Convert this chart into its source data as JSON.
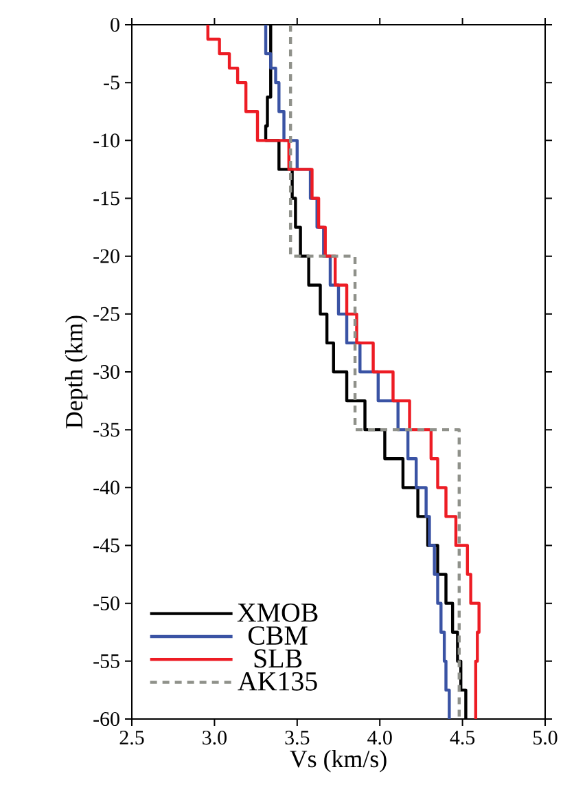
{
  "chart_data": {
    "type": "line",
    "xlabel": "Vs (km/s)",
    "ylabel": "Depth (km)",
    "xlim": [
      2.5,
      5.0
    ],
    "ylim": [
      -60,
      0
    ],
    "xticks": [
      2.5,
      {
        "value": 3.0,
        "label": "3.0"
      },
      3.5,
      {
        "value": 4.0,
        "label": "4.0"
      },
      4.5,
      {
        "value": 5.0,
        "label": "5.0"
      }
    ],
    "yticks": [
      -60,
      -55,
      -50,
      -45,
      -40,
      -35,
      -30,
      -25,
      -20,
      -15,
      -10,
      -5,
      0
    ],
    "legend": "bottom left",
    "series": [
      {
        "name": "XMOB",
        "color": "#000000",
        "line_style": "solid",
        "x": [
          3.34,
          3.34,
          3.32,
          3.32,
          3.31,
          3.31,
          3.39,
          3.39,
          3.47,
          3.47,
          3.49,
          3.49,
          3.52,
          3.52,
          3.57,
          3.57,
          3.64,
          3.64,
          3.68,
          3.68,
          3.72,
          3.72,
          3.8,
          3.8,
          3.91,
          3.91,
          4.03,
          4.03,
          4.14,
          4.14,
          4.23,
          4.23,
          4.29,
          4.29,
          4.35,
          4.35,
          4.4,
          4.4,
          4.44,
          4.44,
          4.47,
          4.47,
          4.49,
          4.49,
          4.52,
          4.52
        ],
        "values": [
          0,
          -6.25,
          -6.25,
          -8.75,
          -8.75,
          -10,
          -10,
          -12.5,
          -12.5,
          -15,
          -15,
          -17.5,
          -17.5,
          -20,
          -20,
          -22.5,
          -22.5,
          -25,
          -25,
          -27.5,
          -27.5,
          -30,
          -30,
          -32.5,
          -32.5,
          -35,
          -35,
          -37.5,
          -37.5,
          -40,
          -40,
          -42.5,
          -42.5,
          -45,
          -45,
          -47.5,
          -47.5,
          -50,
          -50,
          -52.5,
          -52.5,
          -55,
          -55,
          -57.5,
          -57.5,
          -60
        ]
      },
      {
        "name": "CBM",
        "color": "#3a53a4",
        "line_style": "solid",
        "x": [
          3.31,
          3.31,
          3.34,
          3.34,
          3.37,
          3.37,
          3.39,
          3.39,
          3.42,
          3.42,
          3.5,
          3.5,
          3.58,
          3.58,
          3.62,
          3.62,
          3.66,
          3.66,
          3.7,
          3.7,
          3.75,
          3.75,
          3.8,
          3.8,
          3.88,
          3.88,
          3.99,
          3.99,
          4.11,
          4.11,
          4.17,
          4.17,
          4.22,
          4.22,
          4.28,
          4.28,
          4.3,
          4.3,
          4.33,
          4.33,
          4.35,
          4.35,
          4.37,
          4.37,
          4.39,
          4.39,
          4.4,
          4.4,
          4.42,
          4.42
        ],
        "values": [
          0,
          -2.5,
          -2.5,
          -3.75,
          -3.75,
          -5,
          -5,
          -7.5,
          -7.5,
          -10,
          -10,
          -12.5,
          -12.5,
          -15,
          -15,
          -17.5,
          -17.5,
          -20,
          -20,
          -22.5,
          -22.5,
          -25,
          -25,
          -27.5,
          -27.5,
          -30,
          -30,
          -32.5,
          -32.5,
          -35,
          -35,
          -37.5,
          -37.5,
          -40,
          -40,
          -42.5,
          -42.5,
          -45,
          -45,
          -47.5,
          -47.5,
          -50,
          -50,
          -52.5,
          -52.5,
          -55,
          -55,
          -57.5,
          -57.5,
          -60
        ]
      },
      {
        "name": "SLB",
        "color": "#ed1c24",
        "line_style": "solid",
        "x": [
          2.96,
          2.96,
          3.03,
          3.03,
          3.09,
          3.09,
          3.14,
          3.14,
          3.19,
          3.19,
          3.26,
          3.26,
          3.45,
          3.45,
          3.59,
          3.59,
          3.63,
          3.63,
          3.67,
          3.67,
          3.73,
          3.73,
          3.8,
          3.8,
          3.86,
          3.86,
          3.96,
          3.96,
          4.08,
          4.08,
          4.18,
          4.18,
          4.31,
          4.31,
          4.35,
          4.35,
          4.4,
          4.4,
          4.46,
          4.46,
          4.53,
          4.53,
          4.55,
          4.55,
          4.6,
          4.6,
          4.59,
          4.59,
          4.58,
          4.58
        ],
        "values": [
          0,
          -1.25,
          -1.25,
          -2.5,
          -2.5,
          -3.75,
          -3.75,
          -5,
          -5,
          -7.5,
          -7.5,
          -10,
          -10,
          -12.5,
          -12.5,
          -15,
          -15,
          -17.5,
          -17.5,
          -20,
          -20,
          -22.5,
          -22.5,
          -25,
          -25,
          -27.5,
          -27.5,
          -30,
          -30,
          -32.5,
          -32.5,
          -35,
          -35,
          -37.5,
          -37.5,
          -40,
          -40,
          -42.5,
          -42.5,
          -45,
          -45,
          -47.5,
          -47.5,
          -50,
          -50,
          -52.5,
          -52.5,
          -55,
          -55,
          -60
        ]
      },
      {
        "name": "AK135",
        "color": "#8f918a",
        "line_style": "dashed",
        "x": [
          3.46,
          3.46,
          3.85,
          3.85,
          4.48,
          4.48
        ],
        "values": [
          0,
          -20,
          -20,
          -35,
          -35,
          -60
        ]
      }
    ]
  }
}
